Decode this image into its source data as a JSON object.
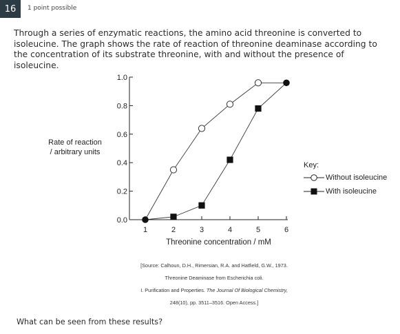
{
  "question": {
    "number": "16",
    "points": "1 point possible",
    "text": "Through a series of enzymatic reactions, the amino acid threonine is converted to isoleucine. The graph shows the rate of reaction of threonine deaminase according to the concentration of its substrate threonine, with and without the presence of isoleucine.",
    "prompt": "What can be seen from these results?"
  },
  "source": {
    "line1": "[Source: Calhoun, D.H., Rimersian, R.A. and Hatfield, G.W., 1973.",
    "line2": "Threonine Deaminase from Escherichia coli.",
    "line3_prefix": "I. Purification and Properties.",
    "line3_journal": "The Journal Of Biological Chemistry,",
    "line4": "248(10), pp. 3511–3516. Open Access.]"
  },
  "key": {
    "title": "Key:",
    "without": "Without isoleucine",
    "with": "With isoleucine"
  },
  "chart_data": {
    "type": "line",
    "ylabel_line1": "Rate of reaction",
    "ylabel_line2": "/ arbitrary units",
    "xlabel": "Threonine concentration / mM",
    "xlim": [
      1,
      6
    ],
    "ylim": [
      0,
      1.0
    ],
    "xticks": [
      1,
      2,
      3,
      4,
      5,
      6
    ],
    "yticks": [
      "0.0",
      "0.2",
      "0.4",
      "0.6",
      "0.8",
      "1.0"
    ],
    "grid": false,
    "legend": "right",
    "series": [
      {
        "name": "Without isoleucine",
        "marker": "open-circle",
        "x": [
          1,
          2,
          3,
          4,
          5,
          6
        ],
        "y": [
          0.0,
          0.35,
          0.64,
          0.81,
          0.96,
          0.96
        ]
      },
      {
        "name": "With isoleucine",
        "marker": "filled-square",
        "x": [
          1,
          2,
          3,
          4,
          5,
          6
        ],
        "y": [
          0.0,
          0.02,
          0.1,
          0.42,
          0.78,
          0.96
        ]
      }
    ]
  }
}
